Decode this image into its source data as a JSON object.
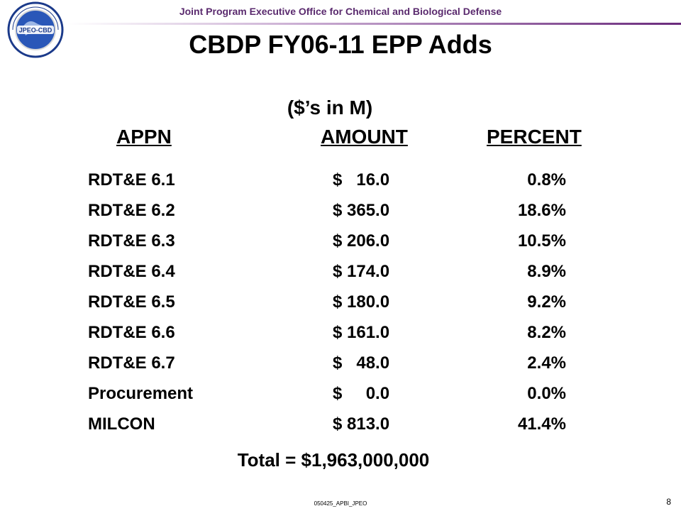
{
  "header": {
    "organization": "Joint Program Executive Office for Chemical and Biological Defense",
    "logo_text": "JPEO-CBD"
  },
  "title": "CBDP FY06-11 EPP Adds",
  "subtitle": "($’s in M)",
  "table": {
    "columns": [
      "APPN",
      "AMOUNT",
      "PERCENT"
    ],
    "rows": [
      {
        "appn": "RDT&E 6.1",
        "amount": "$   16.0",
        "percent": "0.8%"
      },
      {
        "appn": "RDT&E 6.2",
        "amount": "$ 365.0",
        "percent": "18.6%"
      },
      {
        "appn": "RDT&E 6.3",
        "amount": "$ 206.0",
        "percent": "10.5%"
      },
      {
        "appn": "RDT&E 6.4",
        "amount": "$ 174.0",
        "percent": "8.9%"
      },
      {
        "appn": "RDT&E 6.5",
        "amount": "$ 180.0",
        "percent": "9.2%"
      },
      {
        "appn": "RDT&E 6.6",
        "amount": "$ 161.0",
        "percent": "8.2%"
      },
      {
        "appn": "RDT&E 6.7",
        "amount": "$   48.0",
        "percent": "2.4%"
      },
      {
        "appn": "Procurement",
        "amount": "$     0.0",
        "percent": "0.0%"
      },
      {
        "appn": "MILCON",
        "amount": "$ 813.0",
        "percent": "41.4%"
      }
    ]
  },
  "total": "Total = $1,963,000,000",
  "footer": {
    "code": "050425_APBI_JPEO",
    "page_number": "8"
  },
  "colors": {
    "header_text": "#5a2a6e",
    "logo_blue": "#1b3a8a"
  }
}
